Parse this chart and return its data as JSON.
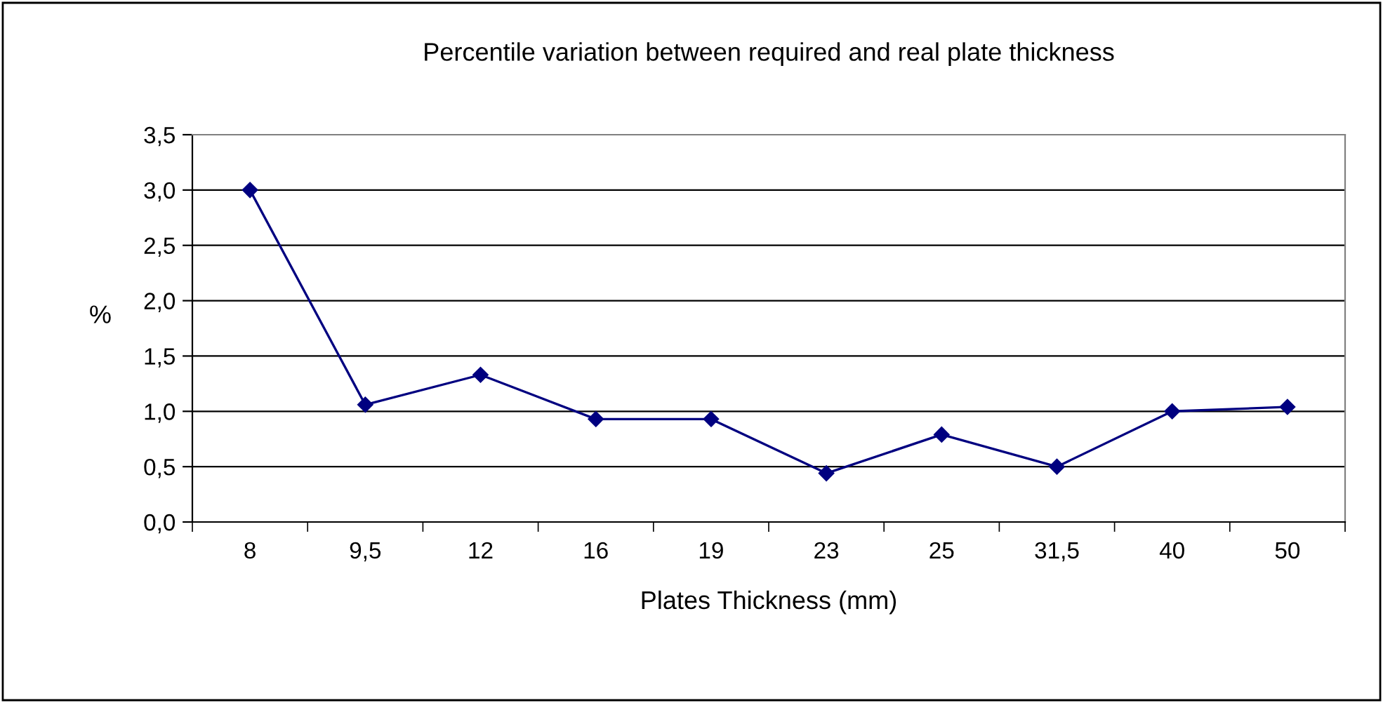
{
  "chart_data": {
    "type": "line",
    "title": "Percentile variation between required and real plate thickness",
    "xlabel": "Plates Thickness (mm)",
    "ylabel": "%",
    "categories": [
      "8",
      "9,5",
      "12",
      "16",
      "19",
      "23",
      "25",
      "31,5",
      "40",
      "50"
    ],
    "series": [
      {
        "color": "#000080",
        "values": [
          3.0,
          1.06,
          1.33,
          0.93,
          0.93,
          0.44,
          0.79,
          0.5,
          1.0,
          1.04
        ]
      }
    ],
    "ylim": [
      0,
      3.5
    ],
    "yticks": [
      {
        "value": 0,
        "label": "0,0"
      },
      {
        "value": 0.5,
        "label": "0,5"
      },
      {
        "value": 1.0,
        "label": "1,0"
      },
      {
        "value": 1.5,
        "label": "1,5"
      },
      {
        "value": 2.0,
        "label": "2,0"
      },
      {
        "value": 2.5,
        "label": "2,5"
      },
      {
        "value": 3.0,
        "label": "3,0"
      },
      {
        "value": 3.5,
        "label": "3,5"
      }
    ],
    "grid": "y",
    "marker": "diamond",
    "line_style": "solid"
  }
}
